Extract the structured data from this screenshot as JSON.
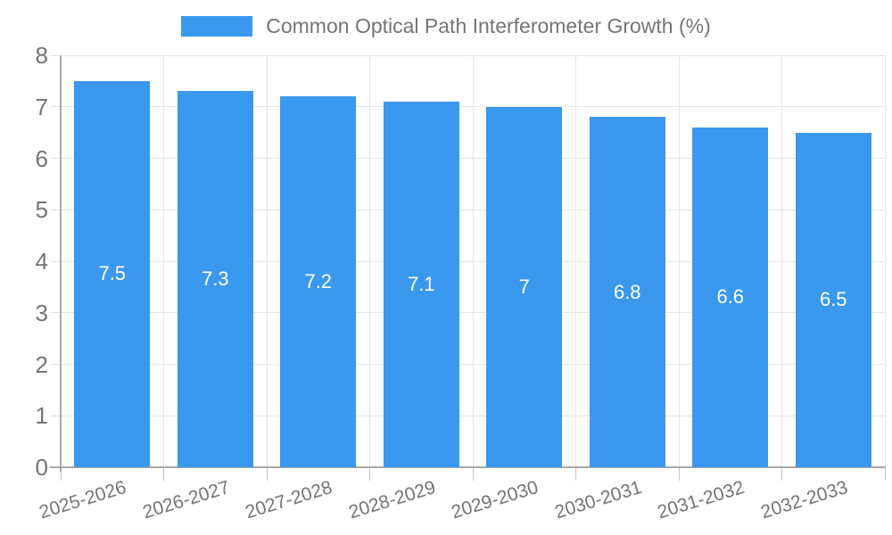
{
  "legend": {
    "label": "Common Optical Path Interferometer Growth (%)"
  },
  "colors": {
    "bar": "#3A99EE",
    "axis": "#A8A8A8",
    "grid": "#E5E5E5",
    "tick": "#C6C6C6",
    "text": "#757575",
    "bar_label": "#FFFFFF",
    "background": "#FFFFFF"
  },
  "chart_data": {
    "type": "bar",
    "title": "Common Optical Path Interferometer Growth (%)",
    "categories": [
      "2025-2026",
      "2026-2027",
      "2027-2028",
      "2028-2029",
      "2029-2030",
      "2030-2031",
      "2031-2032",
      "2032-2033"
    ],
    "values": [
      7.5,
      7.3,
      7.2,
      7.1,
      7,
      6.8,
      6.6,
      6.5
    ],
    "value_labels": [
      "7.5",
      "7.3",
      "7.2",
      "7.1",
      "7",
      "6.8",
      "6.6",
      "6.5"
    ],
    "xlabel": "",
    "ylabel": "",
    "ylim": [
      0,
      8
    ],
    "ytick_step": 1,
    "ytick_labels": [
      "0",
      "1",
      "2",
      "3",
      "4",
      "5",
      "6",
      "7",
      "8"
    ],
    "grid": true,
    "legend_position": "top",
    "x_label_rotation_deg": -17
  }
}
